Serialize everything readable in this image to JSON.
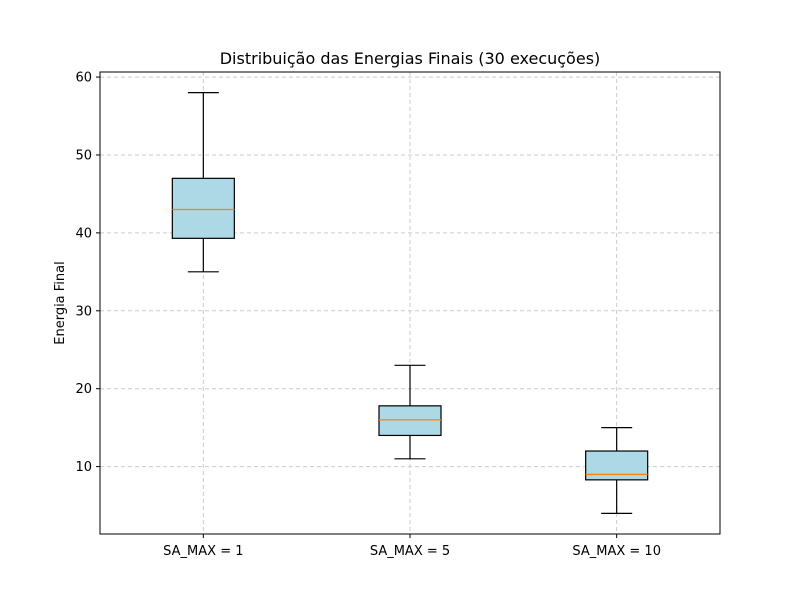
{
  "chart_data": {
    "type": "box",
    "title": "Distribuição das Energias Finais (30 execuções)",
    "xlabel": "",
    "ylabel": "Energia Final",
    "ylim": [
      1.35,
      60.65
    ],
    "yticks": [
      10,
      20,
      30,
      40,
      50,
      60
    ],
    "grid": true,
    "categories": [
      "SA_MAX = 1",
      "SA_MAX = 5",
      "SA_MAX = 10"
    ],
    "boxes": [
      {
        "category": "SA_MAX = 1",
        "whisker_low": 35,
        "q1": 39.3,
        "median": 43,
        "q3": 47,
        "whisker_high": 58
      },
      {
        "category": "SA_MAX = 5",
        "whisker_low": 11,
        "q1": 14,
        "median": 16,
        "q3": 17.8,
        "whisker_high": 23
      },
      {
        "category": "SA_MAX = 10",
        "whisker_low": 4,
        "q1": 8.3,
        "median": 9,
        "q3": 12,
        "whisker_high": 15
      }
    ],
    "colors": {
      "box_fill": "#add8e6",
      "box_edge": "#000000",
      "median": "#ff7f0e",
      "grid": "#cccccc"
    }
  }
}
